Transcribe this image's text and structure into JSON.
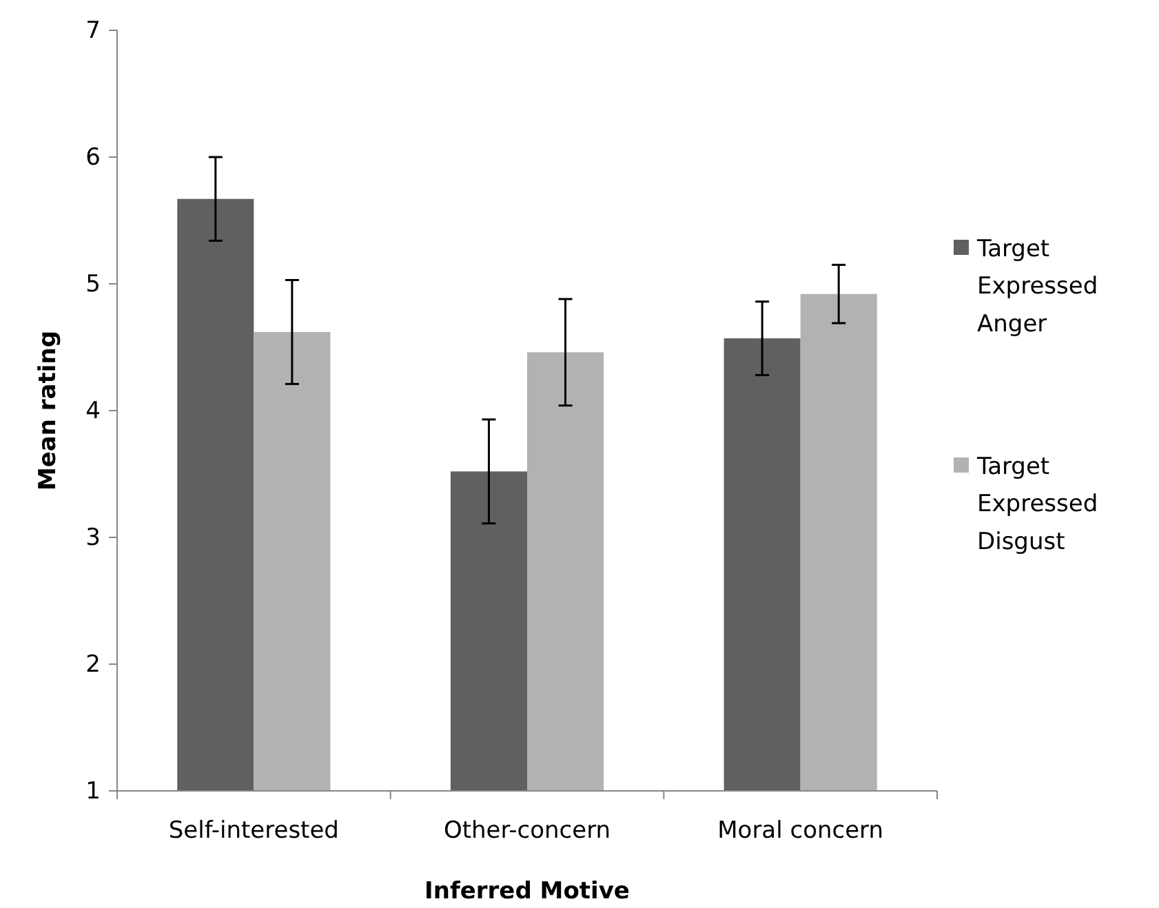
{
  "chart_data": {
    "type": "bar",
    "xlabel": "Inferred Motive",
    "ylabel": "Mean rating",
    "categories": [
      "Self-interested",
      "Other-concern",
      "Moral concern"
    ],
    "series": [
      {
        "name": "Target Expressed Anger",
        "color": "#606060",
        "values": [
          5.67,
          3.52,
          4.57
        ],
        "errors": [
          0.33,
          0.41,
          0.29
        ]
      },
      {
        "name": "Target Expressed Disgust",
        "color": "#b2b2b2",
        "values": [
          4.62,
          4.46,
          4.92
        ],
        "errors": [
          0.41,
          0.42,
          0.23
        ]
      }
    ],
    "ylim": [
      1,
      7
    ],
    "yticks": [
      1,
      2,
      3,
      4,
      5,
      6,
      7
    ],
    "grid": false,
    "legend": "right"
  }
}
